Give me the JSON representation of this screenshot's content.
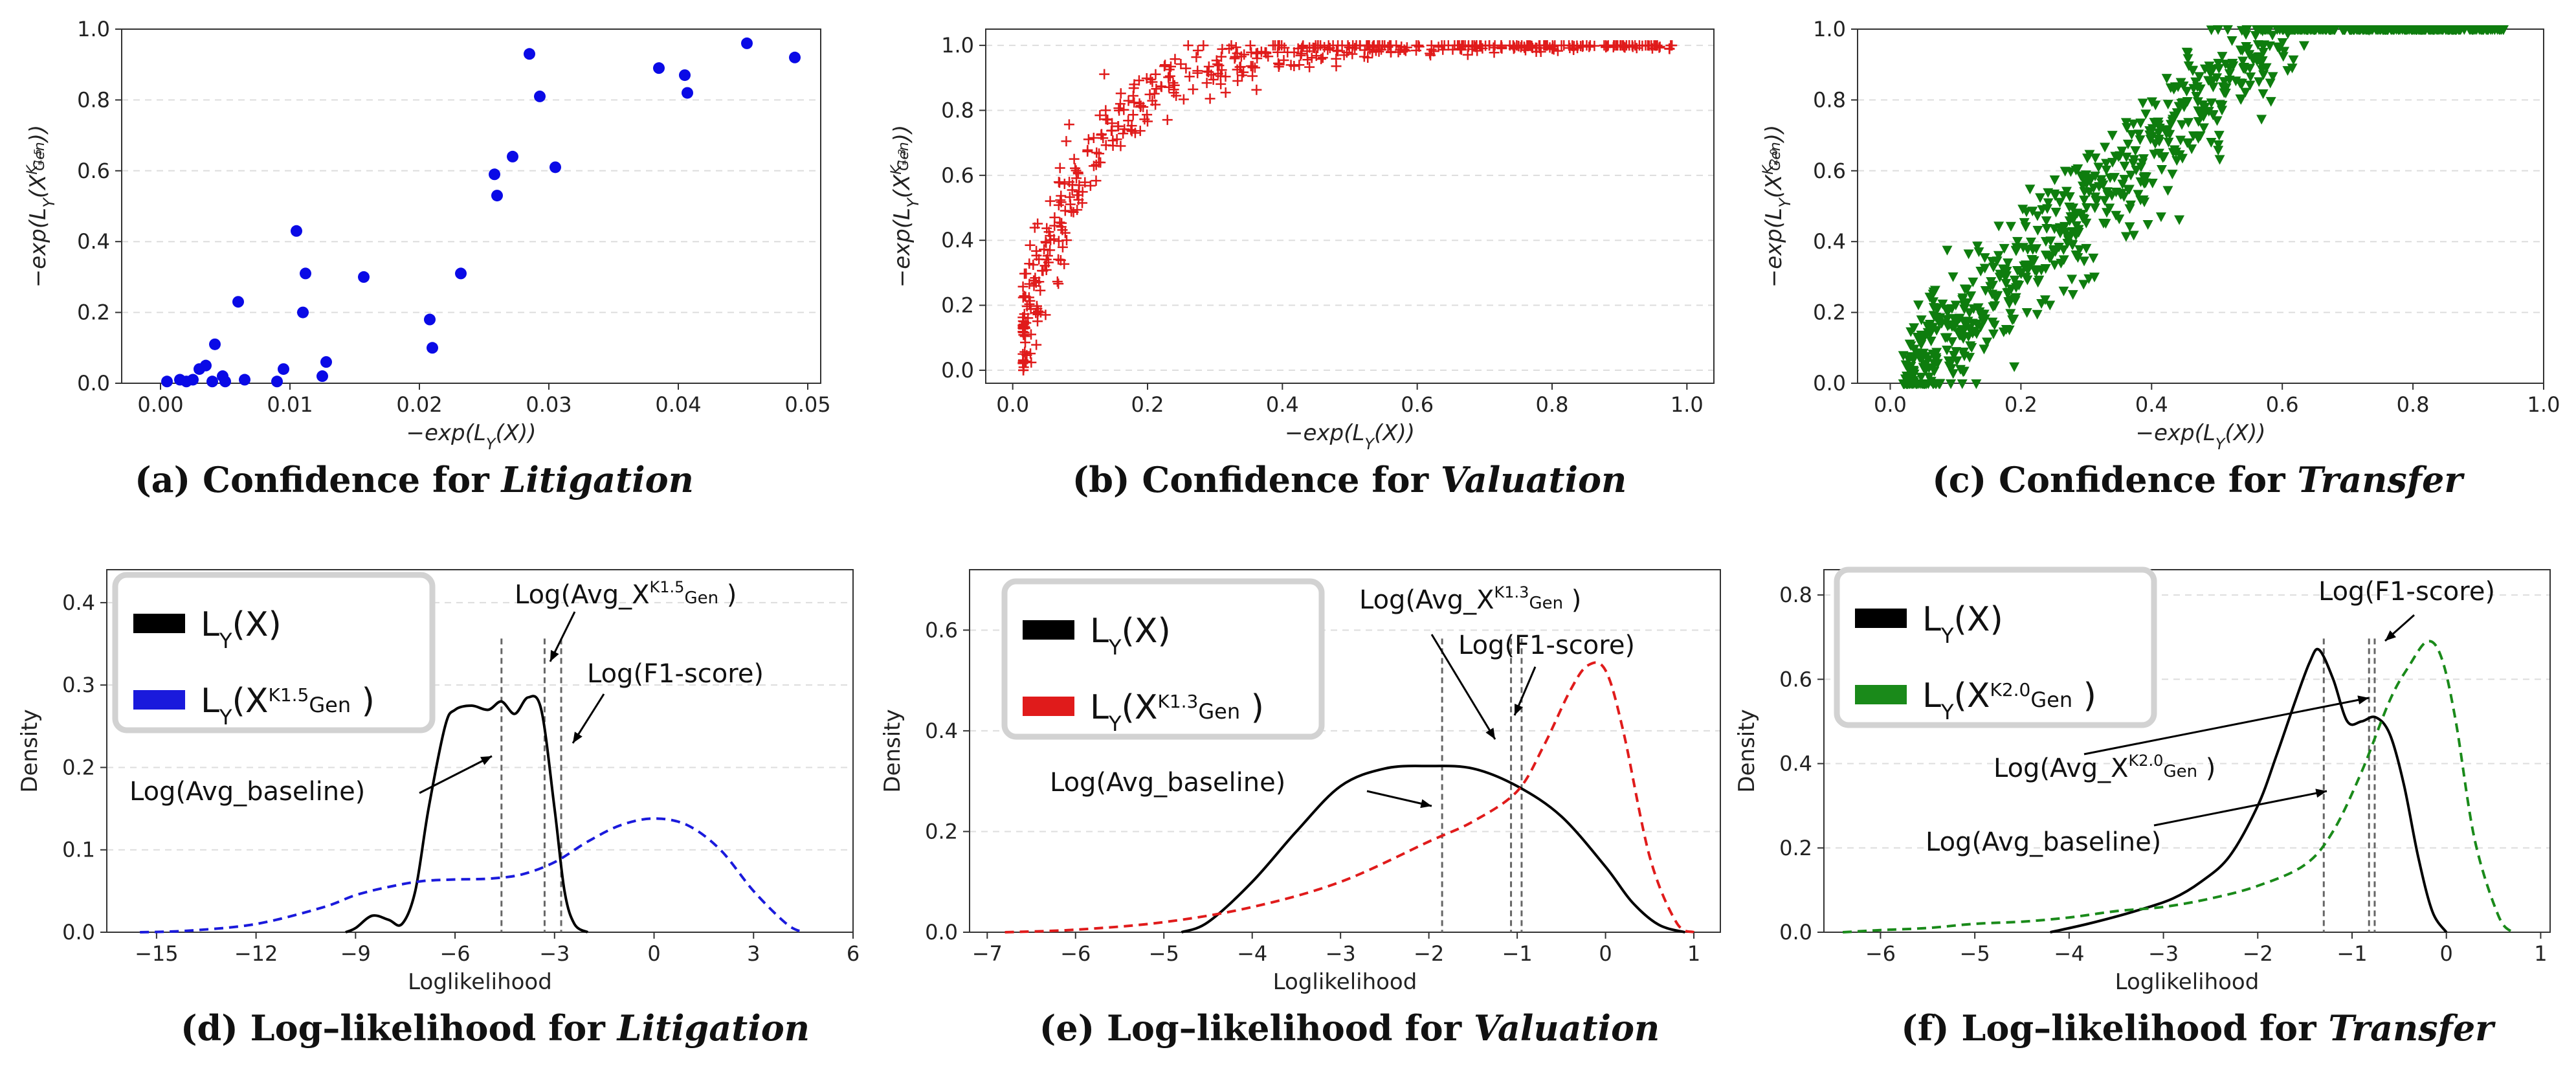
{
  "chart_data": [
    {
      "id": "a",
      "type": "scatter",
      "title": "(a) Confidence for Litigation",
      "caption_prefix": "(a) Confidence for ",
      "caption_italic": "Litigation",
      "xlabel": "−exp(L_Y(X))",
      "ylabel": "−exp(L_Y(X^{K1.5}_{Gen}))",
      "xlim": [
        -0.003,
        0.051
      ],
      "ylim": [
        0,
        1.0
      ],
      "xticks": [
        0.0,
        0.01,
        0.02,
        0.03,
        0.04,
        0.05
      ],
      "xtick_labels": [
        "0.00",
        "0.01",
        "0.02",
        "0.03",
        "0.04",
        "0.05"
      ],
      "yticks": [
        0.0,
        0.2,
        0.4,
        0.6,
        0.8,
        1.0
      ],
      "ytick_labels": [
        "0.0",
        "0.2",
        "0.4",
        "0.6",
        "0.8",
        "1.0"
      ],
      "color": "#0a0ae6",
      "marker": "circle",
      "x": [
        0.0005,
        0.0015,
        0.002,
        0.0025,
        0.003,
        0.0035,
        0.004,
        0.0042,
        0.0048,
        0.005,
        0.006,
        0.0065,
        0.009,
        0.0095,
        0.0105,
        0.011,
        0.0112,
        0.0125,
        0.0128,
        0.0157,
        0.0208,
        0.021,
        0.0232,
        0.0258,
        0.026,
        0.0272,
        0.0285,
        0.0293,
        0.0305,
        0.0385,
        0.0405,
        0.0407,
        0.0453,
        0.049
      ],
      "y": [
        0.005,
        0.01,
        0.005,
        0.01,
        0.04,
        0.05,
        0.005,
        0.11,
        0.02,
        0.005,
        0.23,
        0.01,
        0.005,
        0.04,
        0.43,
        0.2,
        0.31,
        0.02,
        0.06,
        0.3,
        0.18,
        0.1,
        0.31,
        0.59,
        0.53,
        0.64,
        0.93,
        0.81,
        0.61,
        0.89,
        0.87,
        0.82,
        0.96,
        0.92
      ]
    },
    {
      "id": "b",
      "type": "scatter",
      "title": "(b) Confidence for Valuation",
      "caption_prefix": "(b) Confidence for ",
      "caption_italic": "Valuation",
      "xlabel": "−exp(L_Y(X))",
      "ylabel": "−exp(L_Y(X^{K1.3}_{Gen}))",
      "xlim": [
        -0.04,
        1.04
      ],
      "ylim": [
        -0.04,
        1.05
      ],
      "xticks": [
        0.0,
        0.2,
        0.4,
        0.6,
        0.8,
        1.0
      ],
      "xtick_labels": [
        "0.0",
        "0.2",
        "0.4",
        "0.6",
        "0.8",
        "1.0"
      ],
      "yticks": [
        0.0,
        0.2,
        0.4,
        0.6,
        0.8,
        1.0
      ],
      "ytick_labels": [
        "0.0",
        "0.2",
        "0.4",
        "0.6",
        "0.8",
        "1.0"
      ],
      "color": "#e01b1b",
      "marker": "plus",
      "n_points": 520,
      "trend": "rising saturating curve from (0.02, 0.0) to (1.0, 1.0); reaches ~0.9 near x=0.3"
    },
    {
      "id": "c",
      "type": "scatter",
      "title": "(c) Confidence for Transfer",
      "caption_prefix": "(c) Confidence for ",
      "caption_italic": "Transfer",
      "xlabel": "−exp(L_Y(X))",
      "ylabel": "−exp(L_Y(X^{K2.0}_{Gen}))",
      "xlim": [
        -0.05,
        1.0
      ],
      "ylim": [
        0,
        1.0
      ],
      "xticks": [
        0.0,
        0.2,
        0.4,
        0.6,
        0.8,
        1.0
      ],
      "xtick_labels": [
        "0.0",
        "0.2",
        "0.4",
        "0.6",
        "0.8",
        "1.0"
      ],
      "yticks": [
        0.0,
        0.2,
        0.4,
        0.6,
        0.8,
        1.0
      ],
      "ytick_labels": [
        "0.0",
        "0.2",
        "0.4",
        "0.6",
        "0.8",
        "1.0"
      ],
      "color": "#0e7d0e",
      "marker": "triangle-down",
      "n_points": 900,
      "trend": "dense rising band from (0.02, 0.0) to ~(0.6, 1.0), saturating at 1.0 up to x=0.95"
    },
    {
      "id": "d",
      "type": "line",
      "title": "(d) Log–likelihood for Litigation",
      "caption_prefix": "(d) Log–likelihood for ",
      "caption_italic": "Litigation",
      "xlabel": "Loglikelihood",
      "ylabel": "Density",
      "xlim": [
        -16.5,
        6
      ],
      "ylim": [
        0,
        0.44
      ],
      "xticks": [
        -15,
        -12,
        -9,
        -6,
        -3,
        0,
        3,
        6
      ],
      "xtick_labels": [
        "−15",
        "−12",
        "−9",
        "−6",
        "−3",
        "0",
        "3",
        "6"
      ],
      "yticks": [
        0.0,
        0.1,
        0.2,
        0.3,
        0.4
      ],
      "ytick_labels": [
        "0.0",
        "0.1",
        "0.2",
        "0.3",
        "0.4"
      ],
      "series": [
        {
          "name": "L_Y(X)",
          "legend_base": "L",
          "legend_sub": "Y",
          "legend_mid": "(X)",
          "legend_sup": "",
          "legend_sup_sub": "",
          "legend_end": "",
          "color": "#000000",
          "dashed": false,
          "x": [
            -9.3,
            -9.0,
            -8.5,
            -8.0,
            -7.6,
            -7.2,
            -6.8,
            -6.3,
            -6.0,
            -5.5,
            -5.0,
            -4.6,
            -4.2,
            -3.8,
            -3.4,
            -3.0,
            -2.7,
            -2.4,
            -2.0
          ],
          "y": [
            0.0,
            0.005,
            0.02,
            0.015,
            0.01,
            0.05,
            0.15,
            0.25,
            0.27,
            0.275,
            0.27,
            0.28,
            0.265,
            0.285,
            0.27,
            0.15,
            0.05,
            0.01,
            0.0
          ]
        },
        {
          "name": "L_Y(X^{K1.5}_{Gen})",
          "legend_base": "L",
          "legend_sub": "Y",
          "legend_mid": "(X",
          "legend_sup": "K1.5",
          "legend_sup_sub": "Gen",
          "legend_end": " )",
          "color": "#1a1adc",
          "dashed": true,
          "x": [
            -15.5,
            -14,
            -12,
            -10,
            -9,
            -8,
            -7,
            -6,
            -5,
            -4,
            -3,
            -2,
            -1,
            0,
            1,
            2,
            3,
            4,
            4.5
          ],
          "y": [
            0.0,
            0.002,
            0.01,
            0.03,
            0.045,
            0.055,
            0.062,
            0.064,
            0.065,
            0.07,
            0.085,
            0.11,
            0.13,
            0.138,
            0.13,
            0.1,
            0.05,
            0.01,
            0.0
          ]
        }
      ],
      "vlines": [
        -4.6,
        -3.3,
        -2.8
      ],
      "annotations": [
        {
          "text": "Log(Avg_X^{K1.5}_{Gen} )",
          "base": "Log(Avg_X",
          "sup": "K1.5",
          "sub": "Gen",
          "end": " )"
        },
        {
          "text": "Log(F1-score)",
          "base": "Log(F1-score)",
          "sup": "",
          "sub": "",
          "end": ""
        },
        {
          "text": "Log(Avg_baseline)",
          "base": "Log(Avg_baseline)",
          "sup": "",
          "sub": "",
          "end": ""
        }
      ]
    },
    {
      "id": "e",
      "type": "line",
      "title": "(e) Log–likelihood for Valuation",
      "caption_prefix": "(e) Log–likelihood for ",
      "caption_italic": "Valuation",
      "xlabel": "Loglikelihood",
      "ylabel": "Density",
      "xlim": [
        -7.2,
        1.3
      ],
      "ylim": [
        0,
        0.72
      ],
      "xticks": [
        -7,
        -6,
        -5,
        -4,
        -3,
        -2,
        -1,
        0,
        1
      ],
      "xtick_labels": [
        "−7",
        "−6",
        "−5",
        "−4",
        "−3",
        "−2",
        "−1",
        "0",
        "1"
      ],
      "yticks": [
        0.0,
        0.2,
        0.4,
        0.6
      ],
      "ytick_labels": [
        "0.0",
        "0.2",
        "0.4",
        "0.6"
      ],
      "series": [
        {
          "name": "L_Y(X)",
          "legend_base": "L",
          "legend_sub": "Y",
          "legend_mid": "(X)",
          "legend_sup": "",
          "legend_sup_sub": "",
          "legend_end": "",
          "color": "#000000",
          "dashed": false,
          "x": [
            -4.8,
            -4.5,
            -4.0,
            -3.5,
            -3.0,
            -2.5,
            -2.0,
            -1.5,
            -1.0,
            -0.5,
            0.0,
            0.3,
            0.6,
            0.9
          ],
          "y": [
            0.0,
            0.02,
            0.1,
            0.2,
            0.29,
            0.325,
            0.33,
            0.325,
            0.29,
            0.23,
            0.13,
            0.06,
            0.015,
            0.0
          ]
        },
        {
          "name": "L_Y(X^{K1.3}_{Gen})",
          "legend_base": "L",
          "legend_sub": "Y",
          "legend_mid": "(X",
          "legend_sup": "K1.3",
          "legend_sup_sub": "Gen",
          "legend_end": " )",
          "color": "#e01b1b",
          "dashed": true,
          "x": [
            -6.8,
            -6.0,
            -5.0,
            -4.0,
            -3.0,
            -2.0,
            -1.5,
            -1.0,
            -0.7,
            -0.4,
            -0.2,
            0.0,
            0.2,
            0.5,
            0.8,
            1.0
          ],
          "y": [
            0.0,
            0.005,
            0.02,
            0.05,
            0.1,
            0.18,
            0.22,
            0.28,
            0.37,
            0.48,
            0.53,
            0.52,
            0.4,
            0.15,
            0.02,
            0.0
          ]
        }
      ],
      "vlines": [
        -1.85,
        -1.07,
        -0.95
      ],
      "annotations": [
        {
          "text": "Log(Avg_X^{K1.3}_{Gen} )",
          "base": "Log(Avg_X",
          "sup": "K1.3",
          "sub": "Gen",
          "end": " )"
        },
        {
          "text": "Log(F1-score)",
          "base": "Log(F1-score)",
          "sup": "",
          "sub": "",
          "end": ""
        },
        {
          "text": "Log(Avg_baseline)",
          "base": "Log(Avg_baseline)",
          "sup": "",
          "sub": "",
          "end": ""
        }
      ]
    },
    {
      "id": "f",
      "type": "line",
      "title": "(f) Log–likelihood for Transfer",
      "caption_prefix": "(f) Log–likelihood for ",
      "caption_italic": "Transfer",
      "xlabel": "Loglikelihood",
      "ylabel": "Density",
      "xlim": [
        -6.6,
        1.1
      ],
      "ylim": [
        0,
        0.86
      ],
      "xticks": [
        -6,
        -5,
        -4,
        -3,
        -2,
        -1,
        0,
        1
      ],
      "xtick_labels": [
        "−6",
        "−5",
        "−4",
        "−3",
        "−2",
        "−1",
        "0",
        "1"
      ],
      "yticks": [
        0.0,
        0.2,
        0.4,
        0.6,
        0.8
      ],
      "ytick_labels": [
        "0.0",
        "0.2",
        "0.4",
        "0.6",
        "0.8"
      ],
      "series": [
        {
          "name": "L_Y(X)",
          "legend_base": "L",
          "legend_sub": "Y",
          "legend_mid": "(X)",
          "legend_sup": "",
          "legend_sup_sub": "",
          "legend_end": "",
          "color": "#000000",
          "dashed": false,
          "x": [
            -4.2,
            -3.8,
            -3.3,
            -2.9,
            -2.6,
            -2.3,
            -2.0,
            -1.8,
            -1.6,
            -1.45,
            -1.35,
            -1.2,
            -1.05,
            -0.9,
            -0.75,
            -0.6,
            -0.45,
            -0.3,
            -0.15,
            0.0
          ],
          "y": [
            0.0,
            0.02,
            0.05,
            0.08,
            0.12,
            0.18,
            0.3,
            0.42,
            0.55,
            0.64,
            0.67,
            0.6,
            0.5,
            0.5,
            0.51,
            0.47,
            0.35,
            0.18,
            0.05,
            0.0
          ]
        },
        {
          "name": "L_Y(X^{K2.0}_{Gen})",
          "legend_base": "L",
          "legend_sub": "Y",
          "legend_mid": "(X",
          "legend_sup": "K2.0",
          "legend_sup_sub": "Gen",
          "legend_end": " )",
          "color": "#1a8a1a",
          "dashed": true,
          "x": [
            -6.4,
            -6.0,
            -5.5,
            -5.0,
            -4.5,
            -4.0,
            -3.5,
            -3.0,
            -2.5,
            -2.0,
            -1.5,
            -1.2,
            -0.9,
            -0.6,
            -0.4,
            -0.2,
            -0.05,
            0.1,
            0.3,
            0.55,
            0.7
          ],
          "y": [
            0.0,
            0.005,
            0.01,
            0.02,
            0.025,
            0.035,
            0.05,
            0.06,
            0.08,
            0.11,
            0.16,
            0.24,
            0.38,
            0.55,
            0.63,
            0.69,
            0.65,
            0.5,
            0.22,
            0.04,
            0.0
          ]
        }
      ],
      "vlines": [
        -1.3,
        -0.82,
        -0.76
      ],
      "annotations": [
        {
          "text": "Log(F1-score)",
          "base": "Log(F1-score)",
          "sup": "",
          "sub": "",
          "end": ""
        },
        {
          "text": "Log(Avg_X^{K2.0}_{Gen} )",
          "base": "Log(Avg_X",
          "sup": "K2.0",
          "sub": "Gen",
          "end": " )"
        },
        {
          "text": "Log(Avg_baseline)",
          "base": "Log(Avg_baseline)",
          "sup": "",
          "sub": "",
          "end": ""
        }
      ]
    }
  ]
}
